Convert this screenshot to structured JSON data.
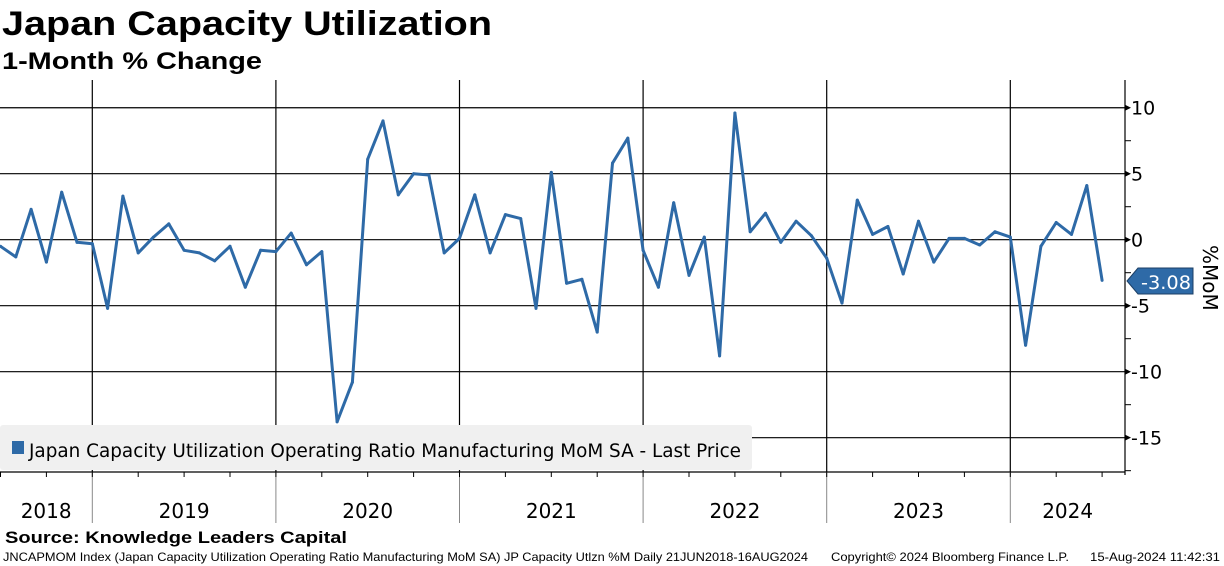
{
  "chart_data": {
    "type": "line",
    "title": "Japan Capacity Utilization",
    "subtitle": "1-Month % Change",
    "ylabel": "%MoM",
    "xlabel": "",
    "x_start": "2018-06",
    "frequency": "monthly",
    "ylim": [
      -17.6,
      12.1
    ],
    "yticks": [
      10,
      5,
      0,
      -5,
      -10,
      -15
    ],
    "ytick_labels": [
      "10",
      "5",
      "0",
      "-5",
      "-10",
      "-15"
    ],
    "year_labels": [
      "2018",
      "2019",
      "2020",
      "2021",
      "2022",
      "2023",
      "2024"
    ],
    "grid": true,
    "series": [
      {
        "name": "Japan Capacity Utilization Operating Ratio Manufacturing MoM SA - Last Price",
        "color": "#2e6aa7",
        "values": [
          -0.5,
          -1.3,
          2.3,
          -1.7,
          3.6,
          -0.2,
          -0.3,
          -5.2,
          3.3,
          -1.0,
          0.2,
          1.2,
          -0.8,
          -1.0,
          -1.6,
          -0.5,
          -3.6,
          -0.8,
          -0.9,
          0.5,
          -1.9,
          -0.9,
          -13.8,
          -10.8,
          6.1,
          9.0,
          3.4,
          5.0,
          4.9,
          -1.0,
          0.1,
          3.4,
          -1.0,
          1.9,
          1.6,
          -5.2,
          5.1,
          -3.3,
          -3.0,
          -7.0,
          5.8,
          7.7,
          -0.8,
          -3.6,
          2.8,
          -2.7,
          0.2,
          -8.8,
          9.6,
          0.6,
          2.0,
          -0.2,
          1.4,
          0.3,
          -1.4,
          -4.8,
          3.0,
          0.4,
          1.0,
          -2.6,
          1.4,
          -1.7,
          0.1,
          0.1,
          -0.4,
          0.6,
          0.2,
          -8.0,
          -0.5,
          1.3,
          0.4,
          4.1,
          -3.08
        ]
      }
    ],
    "last_value_label": "-3.08",
    "legend": {
      "label": "Japan Capacity Utilization Operating Ratio Manufacturing MoM SA - Last Price",
      "placement": "bottom-left"
    }
  },
  "source": "Source: Knowledge Leaders Capital",
  "footer": {
    "description": "JNCAPMOM Index (Japan Capacity Utilization Operating Ratio Manufacturing MoM SA) JP Capacity Utlzn %M  Daily 21JUN2018-16AUG2024",
    "copyright": "Copyright© 2024 Bloomberg Finance L.P.",
    "timestamp": "15-Aug-2024 11:42:31"
  }
}
